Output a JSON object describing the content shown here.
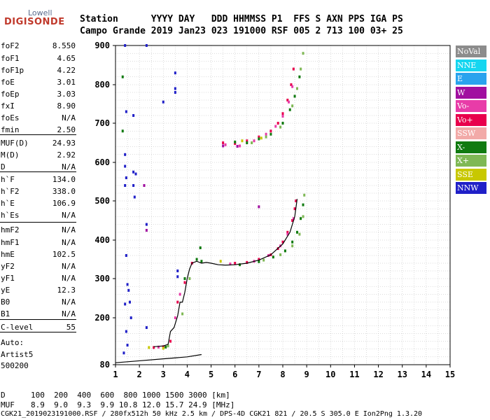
{
  "logo": {
    "line1": "Lowell",
    "line2": "DIGISONDE"
  },
  "header": {
    "row1": "Station      YYYY DAY   DDD HHMMSS P1  FFS S AXN PPS IGA PS",
    "row2": "Campo Grande 2019 Jan23 023 191000 RSF 005 2 713 100 03+ 25"
  },
  "params": [
    {
      "label": "foF2",
      "value": "8.550"
    },
    {
      "label": "foF1",
      "value": "4.65"
    },
    {
      "label": "foF1p",
      "value": "4.22"
    },
    {
      "label": "foE",
      "value": "3.01"
    },
    {
      "label": "foEp",
      "value": "3.03"
    },
    {
      "label": "fxI",
      "value": "8.90"
    },
    {
      "label": "foEs",
      "value": "N/A"
    },
    {
      "label": "fmin",
      "value": "2.50"
    },
    {
      "label": "MUF(D)",
      "value": "24.93"
    },
    {
      "label": "M(D)",
      "value": "2.92"
    },
    {
      "label": "D",
      "value": "N/A"
    },
    {
      "label": "h`F",
      "value": "134.0"
    },
    {
      "label": "h`F2",
      "value": "338.0"
    },
    {
      "label": "h`E",
      "value": "106.9"
    },
    {
      "label": "h`Es",
      "value": "N/A"
    },
    {
      "label": "hmF2",
      "value": "N/A"
    },
    {
      "label": "hmF1",
      "value": "N/A"
    },
    {
      "label": "hmE",
      "value": "102.5"
    },
    {
      "label": "yF2",
      "value": "N/A"
    },
    {
      "label": "yF1",
      "value": "N/A"
    },
    {
      "label": "yE",
      "value": "12.3"
    },
    {
      "label": "B0",
      "value": "N/A"
    },
    {
      "label": "B1",
      "value": "N/A"
    },
    {
      "label": "C-level",
      "value": "55"
    }
  ],
  "auto": {
    "line1": "Auto:",
    "line2": "Artist5",
    "line3": "500200"
  },
  "bottom": {
    "d_label": "D",
    "d_values": "100  200  400  600  800 1000 1500 3000 [km]",
    "muf_label": "MUF",
    "muf_values": "8.9  9.0  9.3  9.9 10.8 12.0 15.7 24.9 [MHz]",
    "footer": "CGK21_2019023191000.RSF / 280fx512h 50 kHz 2.5 km / DPS-4D CGK21 821 / 20.5 S 305.0 E Ion2Png 1.3.20"
  },
  "legend": [
    {
      "label": "NoVal",
      "color": "#8c8c8c"
    },
    {
      "label": "NNE",
      "color": "#16d6f0"
    },
    {
      "label": "E",
      "color": "#2aa3ee"
    },
    {
      "label": "W",
      "color": "#a10fa0"
    },
    {
      "label": "Vo-",
      "color": "#e83ca8"
    },
    {
      "label": "Vo+",
      "color": "#e8004c"
    },
    {
      "label": "SSW",
      "color": "#f2aaa8"
    },
    {
      "label": "X-",
      "color": "#107a10"
    },
    {
      "label": "X+",
      "color": "#7fb855"
    },
    {
      "label": "SSE",
      "color": "#c8c800"
    },
    {
      "label": "NNW",
      "color": "#2020c8"
    }
  ],
  "chart_data": {
    "type": "scatter",
    "xlabel": "",
    "ylabel": "",
    "xlim": [
      1,
      15
    ],
    "ylim": [
      80,
      900
    ],
    "xticks": [
      1,
      2,
      3,
      4,
      5,
      6,
      7,
      8,
      9,
      10,
      11,
      12,
      13,
      14,
      15
    ],
    "yticks": [
      80,
      200,
      300,
      400,
      500,
      600,
      700,
      800,
      900
    ],
    "grid": true,
    "series": [
      {
        "name": "Vo+",
        "color": "#e8004c",
        "points": [
          [
            5.5,
            650
          ],
          [
            6.0,
            648
          ],
          [
            6.5,
            655
          ],
          [
            7.0,
            665
          ],
          [
            7.5,
            680
          ],
          [
            7.8,
            700
          ],
          [
            8.0,
            725
          ],
          [
            8.2,
            760
          ],
          [
            8.35,
            800
          ],
          [
            8.45,
            840
          ],
          [
            6.0,
            340
          ],
          [
            6.5,
            342
          ],
          [
            7.0,
            350
          ],
          [
            7.5,
            362
          ],
          [
            7.8,
            378
          ],
          [
            8.0,
            395
          ],
          [
            8.2,
            420
          ],
          [
            8.4,
            450
          ],
          [
            8.5,
            480
          ],
          [
            8.55,
            500
          ],
          [
            2.6,
            124
          ],
          [
            3.0,
            126
          ],
          [
            3.3,
            140
          ],
          [
            3.6,
            240
          ],
          [
            3.9,
            290
          ],
          [
            4.2,
            340
          ]
        ]
      },
      {
        "name": "Vo-",
        "color": "#e83ca8",
        "points": [
          [
            5.6,
            645
          ],
          [
            6.2,
            642
          ],
          [
            6.8,
            655
          ],
          [
            7.3,
            672
          ],
          [
            7.7,
            692
          ],
          [
            8.0,
            718
          ],
          [
            8.25,
            755
          ],
          [
            8.4,
            795
          ],
          [
            5.8,
            338
          ],
          [
            6.8,
            345
          ],
          [
            7.4,
            360
          ],
          [
            7.9,
            385
          ],
          [
            8.2,
            415
          ],
          [
            8.45,
            455
          ],
          [
            2.8,
            125
          ],
          [
            3.5,
            200
          ],
          [
            3.7,
            260
          ]
        ]
      },
      {
        "name": "X-",
        "color": "#107a10",
        "points": [
          [
            6.0,
            652
          ],
          [
            6.5,
            650
          ],
          [
            7.0,
            660
          ],
          [
            7.5,
            672
          ],
          [
            8.0,
            700
          ],
          [
            8.3,
            735
          ],
          [
            8.5,
            770
          ],
          [
            8.7,
            820
          ],
          [
            6.2,
            336
          ],
          [
            7.0,
            344
          ],
          [
            7.6,
            356
          ],
          [
            8.1,
            372
          ],
          [
            8.4,
            395
          ],
          [
            8.6,
            420
          ],
          [
            8.75,
            455
          ],
          [
            8.85,
            490
          ],
          [
            3.1,
            125
          ],
          [
            3.9,
            300
          ],
          [
            4.4,
            350
          ],
          [
            4.55,
            380
          ],
          [
            4.6,
            345
          ],
          [
            1.3,
            820
          ],
          [
            1.3,
            680
          ]
        ]
      },
      {
        "name": "X+",
        "color": "#7fb855",
        "points": [
          [
            6.7,
            650
          ],
          [
            7.3,
            665
          ],
          [
            7.9,
            690
          ],
          [
            8.4,
            745
          ],
          [
            8.6,
            790
          ],
          [
            8.75,
            840
          ],
          [
            8.85,
            880
          ],
          [
            7.2,
            348
          ],
          [
            7.9,
            362
          ],
          [
            8.4,
            385
          ],
          [
            8.7,
            415
          ],
          [
            8.85,
            460
          ],
          [
            8.9,
            515
          ],
          [
            3.2,
            128
          ],
          [
            3.8,
            210
          ],
          [
            4.1,
            300
          ]
        ]
      },
      {
        "name": "SSE",
        "color": "#c8c800",
        "points": [
          [
            6.3,
            655
          ],
          [
            7.1,
            662
          ],
          [
            5.4,
            345
          ],
          [
            2.4,
            124
          ],
          [
            3.0,
            122
          ]
        ]
      },
      {
        "name": "NNW",
        "color": "#2020c8",
        "points": [
          [
            1.4,
            590
          ],
          [
            1.4,
            540
          ],
          [
            1.4,
            620
          ],
          [
            1.45,
            560
          ],
          [
            1.4,
            235
          ],
          [
            1.45,
            165
          ],
          [
            1.5,
            130
          ],
          [
            1.5,
            285
          ],
          [
            1.55,
            270
          ],
          [
            1.35,
            110
          ],
          [
            1.45,
            360
          ],
          [
            1.4,
            900
          ],
          [
            1.45,
            730
          ],
          [
            1.75,
            720
          ],
          [
            1.75,
            575
          ],
          [
            1.75,
            540
          ],
          [
            1.8,
            510
          ],
          [
            1.85,
            570
          ],
          [
            2.3,
            900
          ],
          [
            2.3,
            440
          ],
          [
            3.0,
            755
          ],
          [
            3.5,
            830
          ],
          [
            3.5,
            790
          ],
          [
            3.5,
            780
          ],
          [
            3.6,
            320
          ],
          [
            3.6,
            305
          ],
          [
            2.3,
            175
          ],
          [
            1.6,
            240
          ],
          [
            1.65,
            200
          ]
        ]
      },
      {
        "name": "W",
        "color": "#a10fa0",
        "points": [
          [
            5.5,
            642
          ],
          [
            6.1,
            641
          ],
          [
            2.3,
            425
          ],
          [
            2.2,
            540
          ],
          [
            7.0,
            485
          ]
        ]
      }
    ],
    "trace": {
      "name": "trace",
      "color": "#000000",
      "points": [
        [
          2.6,
          126
        ],
        [
          3.0,
          128
        ],
        [
          3.2,
          132
        ],
        [
          3.3,
          165
        ],
        [
          3.45,
          175
        ],
        [
          3.6,
          205
        ],
        [
          3.7,
          240
        ],
        [
          3.8,
          240
        ],
        [
          3.9,
          265
        ],
        [
          4.0,
          300
        ],
        [
          4.1,
          325
        ],
        [
          4.2,
          340
        ],
        [
          4.4,
          345
        ],
        [
          4.6,
          340
        ],
        [
          4.8,
          342
        ],
        [
          5.0,
          340
        ],
        [
          5.3,
          336
        ],
        [
          5.6,
          335
        ],
        [
          6.0,
          336
        ],
        [
          6.5,
          340
        ],
        [
          7.0,
          348
        ],
        [
          7.5,
          362
        ],
        [
          8.0,
          390
        ],
        [
          8.3,
          420
        ],
        [
          8.5,
          460
        ],
        [
          8.6,
          505
        ]
      ]
    },
    "trace_low": {
      "name": "trace_low",
      "color": "#000000",
      "points": [
        [
          1.0,
          85
        ],
        [
          2.0,
          90
        ],
        [
          3.0,
          95
        ],
        [
          4.0,
          100
        ],
        [
          4.6,
          106
        ]
      ]
    }
  }
}
